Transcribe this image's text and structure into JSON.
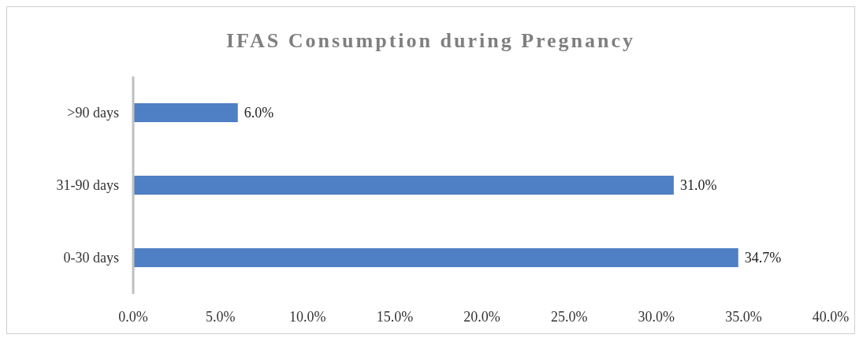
{
  "chart_data": {
    "type": "bar",
    "orientation": "horizontal",
    "title": "IFAS Consumption during Pregnancy",
    "categories": [
      ">90 days",
      "31-90 days",
      "0-30 days"
    ],
    "values": [
      6.0,
      31.0,
      34.7
    ],
    "value_labels": [
      "6.0%",
      "31.0%",
      "34.7%"
    ],
    "color": "#4f7fc4",
    "xlim": [
      0,
      40
    ],
    "xticks": [
      {
        "value": 0,
        "label": "0.0%"
      },
      {
        "value": 5,
        "label": "5.0%"
      },
      {
        "value": 10,
        "label": "10.0%"
      },
      {
        "value": 15,
        "label": "15.0%"
      },
      {
        "value": 20,
        "label": "20.0%"
      },
      {
        "value": 25,
        "label": "25.0%"
      },
      {
        "value": 30,
        "label": "30.0%"
      },
      {
        "value": 35,
        "label": "35.0%"
      },
      {
        "value": 40,
        "label": "40.0%"
      }
    ],
    "grid": false,
    "legend": false
  }
}
